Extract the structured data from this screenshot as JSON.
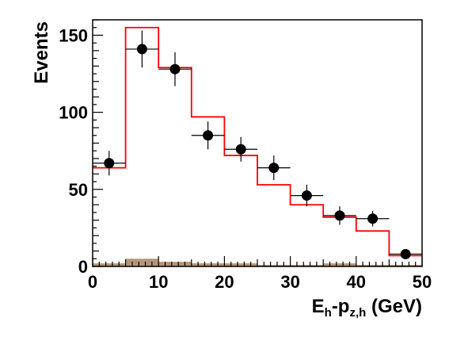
{
  "chart_data": {
    "type": "histogram-with-points",
    "xlabel_parts": [
      "E",
      "h",
      "-p",
      "z,h",
      " (GeV)"
    ],
    "ylabel": "Events",
    "xlim": [
      0,
      50
    ],
    "ylim": [
      0,
      160
    ],
    "x_ticks": [
      0,
      10,
      20,
      30,
      40,
      50
    ],
    "y_ticks": [
      0,
      50,
      100,
      150
    ],
    "grid": false,
    "bin_edges": [
      0,
      5,
      10,
      15,
      20,
      25,
      30,
      35,
      40,
      45,
      50
    ],
    "series": [
      {
        "kind": "data-points",
        "x": [
          2.5,
          7.5,
          12.5,
          17.5,
          22.5,
          27.5,
          32.5,
          37.5,
          42.5,
          47.5
        ],
        "y": [
          67,
          141,
          128,
          85,
          76,
          64,
          46,
          33,
          31,
          8
        ],
        "yerr": [
          8,
          12,
          11,
          9,
          8,
          8,
          7,
          6,
          5,
          3
        ],
        "color": "#000000"
      },
      {
        "kind": "step-histogram",
        "values": [
          64,
          155,
          129,
          97,
          72,
          53,
          40,
          32,
          23,
          7
        ],
        "color": "#ff0000"
      },
      {
        "kind": "filled-histogram",
        "values": [
          2,
          5,
          3,
          2,
          2,
          1,
          1,
          2,
          1,
          1
        ],
        "color": "#b4967a"
      }
    ]
  }
}
